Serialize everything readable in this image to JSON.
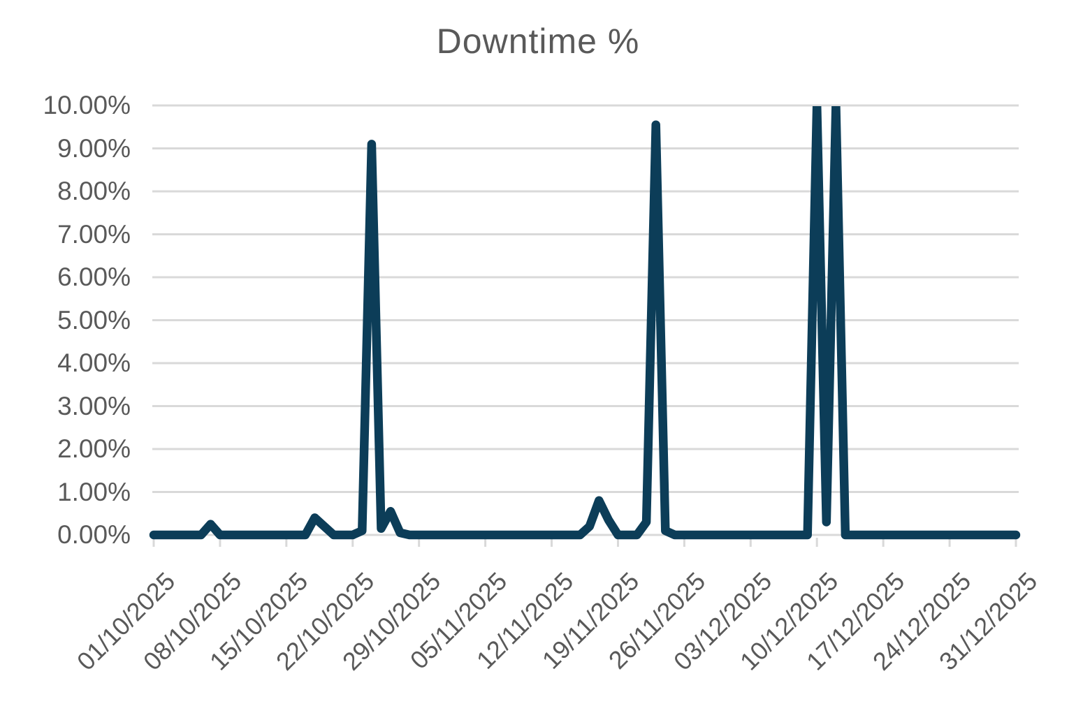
{
  "title": "Downtime %",
  "chart_data": {
    "type": "line",
    "title": "Downtime %",
    "series_name": "Downtime %",
    "ylim": [
      0,
      10
    ],
    "grid": "horizontal",
    "legend": "none",
    "line_color": "#0c3d58",
    "gridline_color": "#d9d9d9",
    "text_color": "#595959",
    "background_color": "#ffffff",
    "y_tick_labels": [
      "10.00%",
      "9.00%",
      "8.00%",
      "7.00%",
      "6.00%",
      "5.00%",
      "4.00%",
      "3.00%",
      "2.00%",
      "1.00%",
      "0.00%"
    ],
    "x_tick_labels": [
      "01/10/2025",
      "08/10/2025",
      "15/10/2025",
      "22/10/2025",
      "29/10/2025",
      "05/11/2025",
      "12/11/2025",
      "19/11/2025",
      "26/11/2025",
      "03/12/2025",
      "10/12/2025",
      "17/12/2025",
      "24/12/2025",
      "31/12/2025"
    ],
    "tick_every_n_points": 7,
    "x_start_date": "01/10/2025",
    "x_end_date": "31/12/2025",
    "values": [
      0,
      0,
      0,
      0,
      0,
      0,
      0.25,
      0,
      0,
      0,
      0,
      0,
      0,
      0,
      0,
      0,
      0,
      0.4,
      0.2,
      0,
      0,
      0,
      0.1,
      9.1,
      0.15,
      0.55,
      0.05,
      0,
      0,
      0,
      0,
      0,
      0,
      0,
      0,
      0,
      0,
      0,
      0,
      0,
      0,
      0,
      0,
      0,
      0,
      0,
      0.2,
      0.8,
      0.35,
      0,
      0,
      0,
      0.3,
      9.55,
      0.1,
      0,
      0,
      0,
      0,
      0,
      0,
      0,
      0,
      0,
      0,
      0,
      0,
      0,
      0,
      0,
      10,
      0.3,
      10,
      0,
      0,
      0,
      0,
      0,
      0,
      0,
      0,
      0,
      0,
      0,
      0,
      0,
      0,
      0,
      0,
      0,
      0,
      0
    ]
  }
}
